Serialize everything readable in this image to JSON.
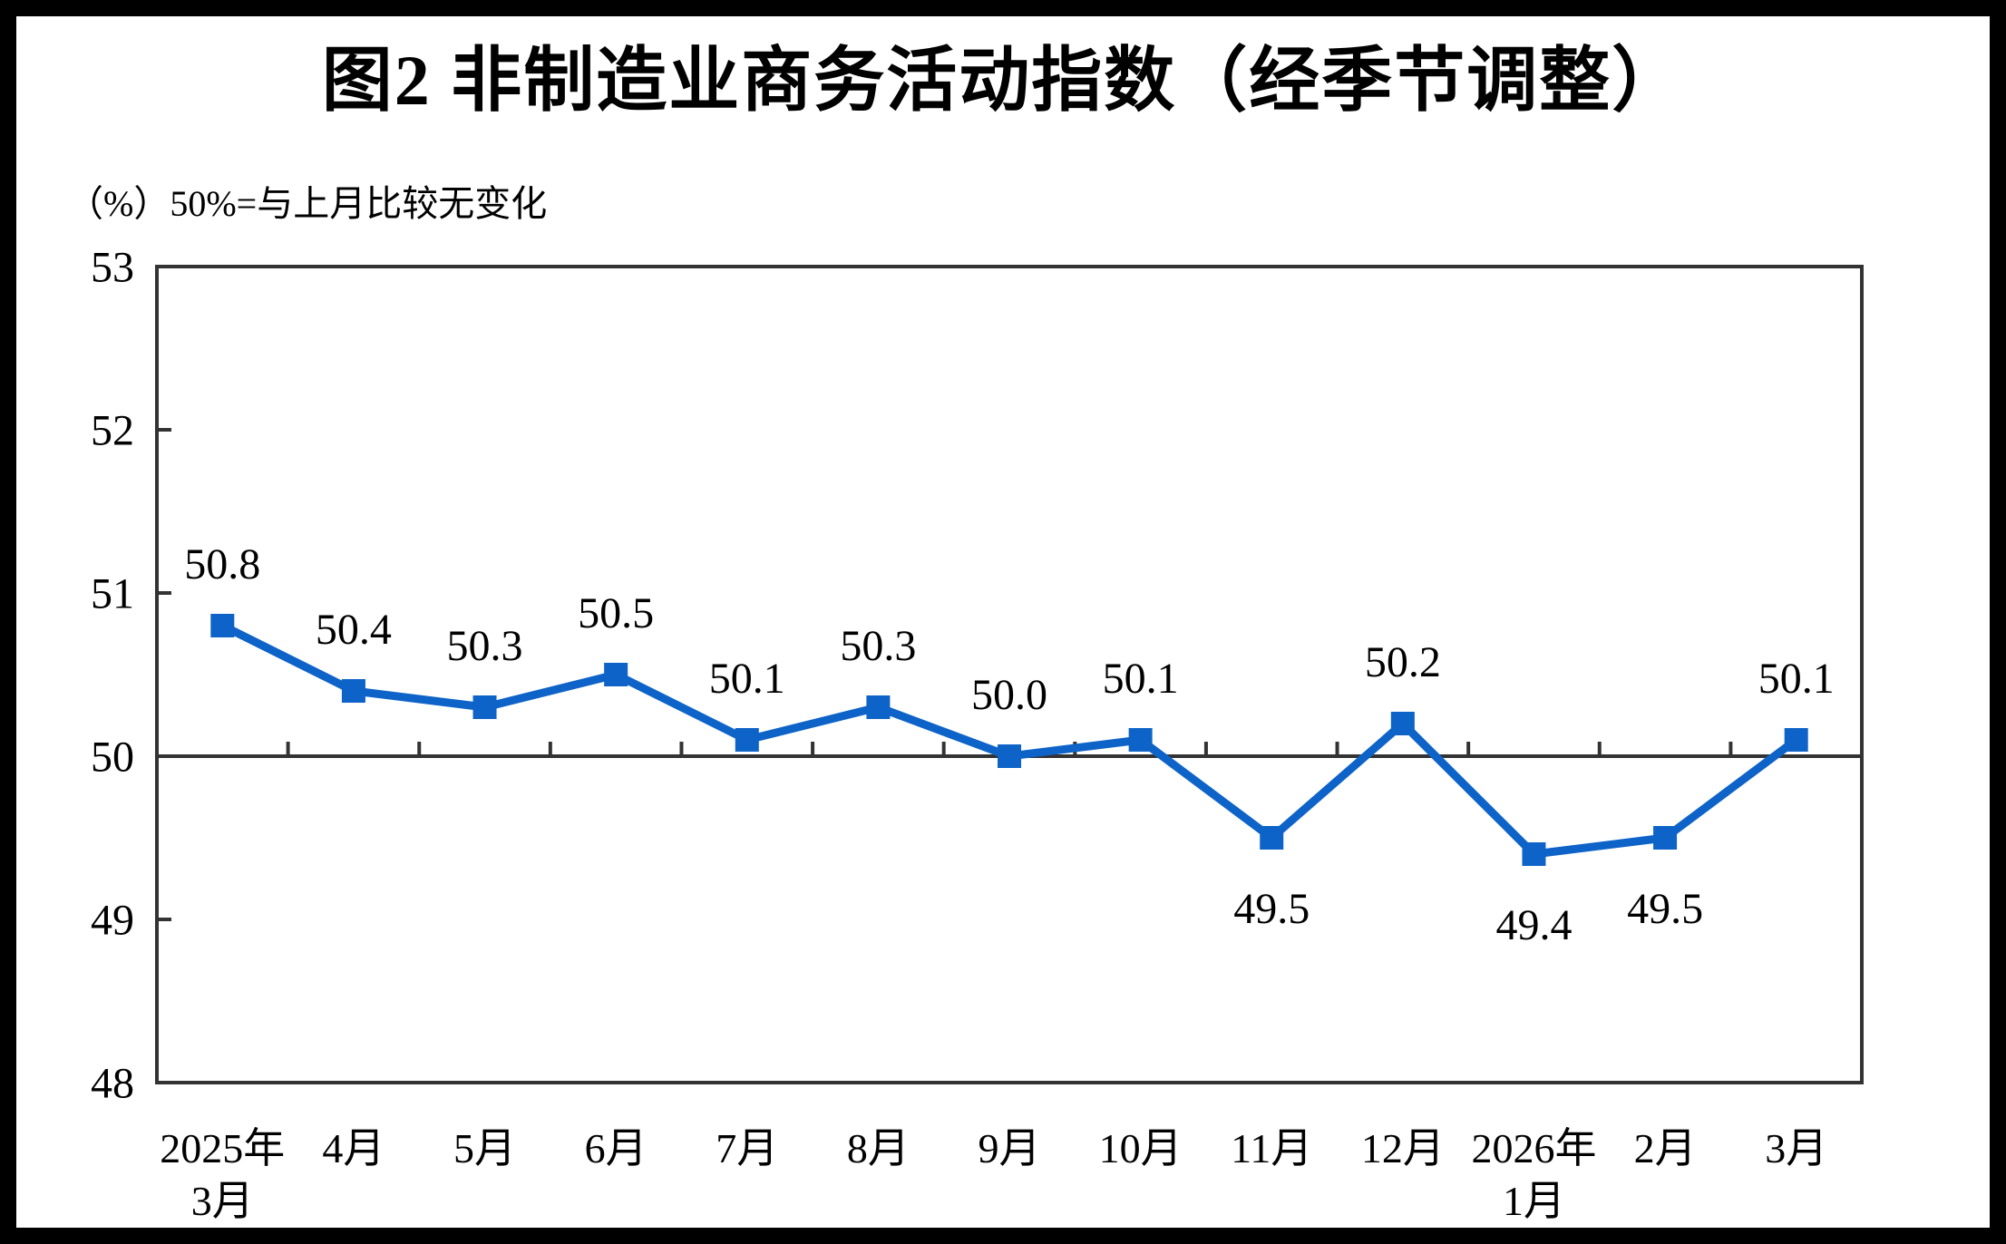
{
  "page": {
    "border_color": "#000000",
    "panel_color": "#ffffff"
  },
  "chart_data": {
    "type": "line",
    "title": "图2  非制造业商务活动指数（经季节调整）",
    "unit_note": "（%）50%=与上月比较无变化",
    "categories": [
      "2025年\n3月",
      "4月",
      "5月",
      "6月",
      "7月",
      "8月",
      "9月",
      "10月",
      "11月",
      "12月",
      "2026年\n1月",
      "2月",
      "3月"
    ],
    "values": [
      50.8,
      50.4,
      50.3,
      50.5,
      50.1,
      50.3,
      50.0,
      50.1,
      49.5,
      50.2,
      49.4,
      49.5,
      50.1
    ],
    "data_labels": [
      "50.8",
      "50.4",
      "50.3",
      "50.5",
      "50.1",
      "50.3",
      "50.0",
      "50.1",
      "49.5",
      "50.2",
      "49.4",
      "49.5",
      "50.1"
    ],
    "label_positions": [
      "above",
      "above",
      "above",
      "above",
      "above",
      "above",
      "above",
      "above",
      "below",
      "above",
      "below",
      "below",
      "above"
    ],
    "ylim": [
      48,
      53
    ],
    "yticks": [
      48,
      49,
      50,
      51,
      52,
      53
    ],
    "x_axis_cross_value": 50,
    "grid": "off",
    "legend": "none",
    "marker": "square",
    "series_color": "#0D63C8",
    "axis_color": "#333333",
    "text_color": "#000000"
  }
}
